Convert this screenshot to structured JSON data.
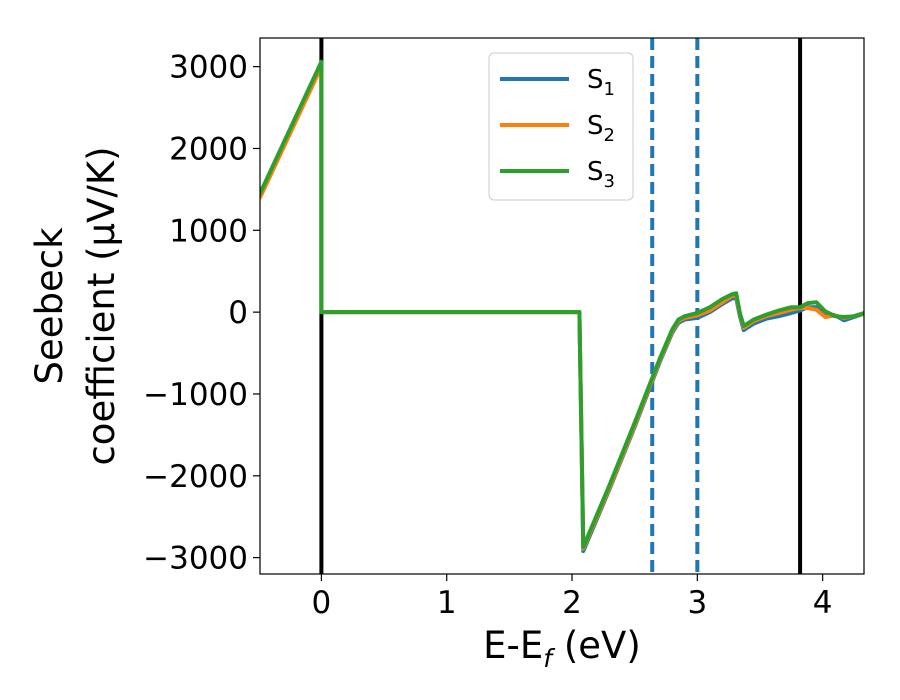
{
  "chart_data": {
    "type": "line",
    "xlabel": "E-E",
    "xlabel_sub": "f",
    "xlabel_unit": " (eV)",
    "ylabel_line1": "Seebeck",
    "ylabel_line2": "coefficient  (μV/K)",
    "xlim": [
      -0.49,
      4.33
    ],
    "ylim": [
      -3200,
      3350
    ],
    "xticks": [
      0,
      1,
      2,
      3,
      4
    ],
    "xtick_labels": [
      "0",
      "1",
      "2",
      "3",
      "4"
    ],
    "yticks": [
      3000,
      2000,
      1000,
      0,
      -1000,
      -2000,
      -3000
    ],
    "ytick_labels": [
      "3000",
      "2000",
      "1000",
      "0",
      "−1000",
      "−2000",
      "−3000"
    ],
    "vlines_solid": [
      0,
      3.82
    ],
    "vlines_dashed": [
      2.64,
      3.0
    ],
    "vline_solid_color": "#000000",
    "vline_dashed_color": "#1f77b4",
    "legend_position": "top-center",
    "grid": false,
    "series": [
      {
        "name": "S",
        "sub": "1",
        "color": "#1f77b4",
        "x": [
          -0.49,
          0.0,
          0.0,
          2.06,
          2.06,
          2.09,
          2.3,
          2.5,
          2.7,
          2.8,
          2.85,
          2.9,
          3.0,
          3.1,
          3.2,
          3.28,
          3.31,
          3.34,
          3.37,
          3.45,
          3.55,
          3.65,
          3.75,
          3.82,
          3.88,
          3.95,
          4.02,
          4.1,
          4.17,
          4.25,
          4.33
        ],
        "y": [
          1420,
          3020,
          0,
          0,
          -70,
          -2920,
          -2160,
          -1400,
          -610,
          -250,
          -130,
          -90,
          -70,
          0,
          100,
          170,
          170,
          -50,
          -220,
          -140,
          -80,
          -50,
          -10,
          20,
          60,
          60,
          -20,
          -40,
          -100,
          -60,
          -20
        ]
      },
      {
        "name": "S",
        "sub": "2",
        "color": "#ff7f0e",
        "x": [
          -0.49,
          0.0,
          0.0,
          2.06,
          2.06,
          2.09,
          2.3,
          2.5,
          2.7,
          2.8,
          2.85,
          2.9,
          3.0,
          3.1,
          3.2,
          3.28,
          3.31,
          3.34,
          3.37,
          3.45,
          3.55,
          3.65,
          3.75,
          3.82,
          3.88,
          3.95,
          4.02,
          4.1,
          4.17,
          4.25,
          4.33
        ],
        "y": [
          1400,
          3000,
          0,
          0,
          -70,
          -2890,
          -2140,
          -1380,
          -590,
          -230,
          -110,
          -70,
          -40,
          20,
          120,
          200,
          200,
          -20,
          -190,
          -110,
          -50,
          -10,
          30,
          50,
          50,
          30,
          -60,
          -40,
          -70,
          -50,
          -20
        ]
      },
      {
        "name": "S",
        "sub": "3",
        "color": "#2ca02c",
        "x": [
          -0.49,
          0.0,
          0.0,
          2.06,
          2.06,
          2.09,
          2.3,
          2.5,
          2.7,
          2.8,
          2.85,
          2.9,
          3.0,
          3.1,
          3.2,
          3.28,
          3.31,
          3.34,
          3.37,
          3.45,
          3.55,
          3.65,
          3.75,
          3.82,
          3.88,
          3.95,
          4.02,
          4.1,
          4.17,
          4.25,
          4.33
        ],
        "y": [
          1450,
          3060,
          0,
          0,
          -70,
          -2870,
          -2110,
          -1350,
          -570,
          -210,
          -90,
          -50,
          -10,
          60,
          160,
          220,
          230,
          -10,
          -170,
          -90,
          -30,
          20,
          60,
          60,
          110,
          120,
          10,
          -50,
          -60,
          -50,
          -10
        ]
      }
    ]
  }
}
